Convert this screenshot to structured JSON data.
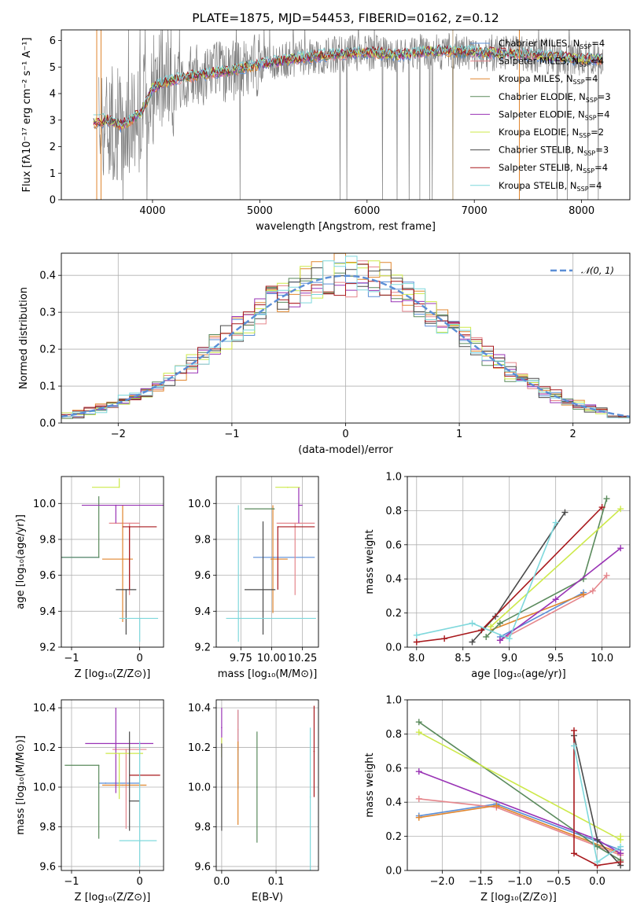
{
  "colors": {
    "chabrier_miles": "#5b8ed6",
    "salpeter_miles": "#e5868c",
    "kroupa_miles": "#e0862e",
    "chabrier_elodie": "#5a8a5c",
    "salpeter_elodie": "#9933b5",
    "kroupa_elodie": "#cde94a",
    "chabrier_stelib": "#4a4a4a",
    "salpeter_stelib": "#a8181c",
    "kroupa_stelib": "#7fd8dc",
    "gaussian": "#5b8ed6"
  },
  "chart_data": [
    {
      "id": "spectrum",
      "type": "line",
      "title": "PLATE=1875, MJD=54453, FIBERID=0162, z=0.12",
      "xlabel": "wavelength [Angstrom, rest frame]",
      "ylabel": "Flux [fλ10⁻¹⁷ erg cm⁻² s⁻¹ A⁻¹]",
      "xlim": [
        3150,
        8450
      ],
      "ylim": [
        0,
        6.4
      ],
      "xticks": [
        4000,
        5000,
        6000,
        7000,
        8000
      ],
      "yticks": [
        0,
        1,
        2,
        3,
        4,
        5,
        6
      ],
      "legend": "right",
      "legend_entries": [
        "Chabrier MILES, N_SSP=4",
        "Salpeter MILES, N_SSP=4",
        "Kroupa MILES, N_SSP=4",
        "Chabrier ELODIE, N_SSP=3",
        "Salpeter ELODIE, N_SSP=4",
        "Kroupa ELODIE, N_SSP=2",
        "Chabrier STELIB, N_SSP=3",
        "Salpeter STELIB, N_SSP=4",
        "Kroupa STELIB, N_SSP=4"
      ],
      "continuum": {
        "x": [
          3500,
          3600,
          3700,
          3800,
          3900,
          4000,
          4100,
          4200,
          4300,
          4500,
          4700,
          5000,
          5300,
          5600,
          6000,
          6300,
          6600,
          7000,
          7400,
          8000,
          8200
        ],
        "y": [
          2.9,
          3.0,
          2.8,
          3.0,
          3.3,
          4.2,
          4.4,
          4.5,
          4.6,
          4.75,
          4.85,
          5.1,
          5.3,
          5.45,
          5.55,
          5.45,
          5.6,
          5.55,
          5.5,
          5.3,
          5.3
        ]
      }
    },
    {
      "id": "residuals",
      "type": "bar",
      "title": "",
      "xlabel": "(data-model)/error",
      "ylabel": "Normed distribution",
      "xlim": [
        -2.5,
        2.5
      ],
      "ylim": [
        0,
        0.46
      ],
      "xticks": [
        -2,
        -1,
        0,
        1,
        2
      ],
      "yticks": [
        0.0,
        0.1,
        0.2,
        0.3,
        0.4
      ],
      "legend": "top-right",
      "legend_label": "𝒩(0, 1)",
      "bin_width": 0.1
    },
    {
      "id": "age_vs_Z",
      "type": "scatter",
      "xlabel": "Z [log₁₀(Z/Z⊙)]",
      "ylabel": "age  [log₁₀(age/yr)]",
      "xlim": [
        -1.15,
        0.35
      ],
      "ylim": [
        9.2,
        10.15
      ],
      "xticks": [
        -1,
        0
      ],
      "yticks": [
        9.2,
        9.4,
        9.6,
        9.8,
        10.0
      ],
      "points": [
        {
          "m": "chabrier_miles",
          "x": -0.6,
          "xe": [
            0.6,
            0.0
          ],
          "y": 9.7,
          "ye": [
            0.0,
            0.0
          ]
        },
        {
          "m": "salpeter_miles",
          "x": -0.15,
          "xe": [
            0.3,
            0.15
          ],
          "y": 9.89,
          "ye": [
            0.4,
            0.0
          ]
        },
        {
          "m": "kroupa_miles",
          "x": -0.25,
          "xe": [
            0.3,
            0.15
          ],
          "y": 9.69,
          "ye": [
            0.35,
            0.3
          ]
        },
        {
          "m": "chabrier_elodie",
          "x": -0.6,
          "xe": [
            0.55,
            0.0
          ],
          "y": 9.7,
          "ye": [
            0.0,
            0.34
          ]
        },
        {
          "m": "salpeter_elodie",
          "x": -0.35,
          "xe": [
            0.5,
            0.7
          ],
          "y": 9.99,
          "ye": [
            0.1,
            0.0
          ]
        },
        {
          "m": "kroupa_elodie",
          "x": -0.3,
          "xe": [
            0.4,
            0.0
          ],
          "y": 10.09,
          "ye": [
            0.0,
            0.05
          ]
        },
        {
          "m": "chabrier_stelib",
          "x": -0.2,
          "xe": [
            0.15,
            0.15
          ],
          "y": 9.52,
          "ye": [
            0.25,
            0.0
          ]
        },
        {
          "m": "salpeter_stelib",
          "x": -0.15,
          "xe": [
            0.1,
            0.4
          ],
          "y": 9.87,
          "ye": [
            0.35,
            0.0
          ]
        },
        {
          "m": "kroupa_stelib",
          "x": 0.0,
          "xe": [
            0.3,
            0.27
          ],
          "y": 9.36,
          "ye": [
            0.13,
            0.0
          ]
        }
      ]
    },
    {
      "id": "age_vs_mass",
      "type": "scatter",
      "xlabel": "mass [log₁₀(M/M⊙)]",
      "ylabel": "",
      "xlim": [
        9.55,
        10.38
      ],
      "ylim": [
        9.2,
        10.15
      ],
      "xticks": [
        9.75,
        10.0,
        10.25
      ],
      "yticks": [
        9.2,
        9.4,
        9.6,
        9.8,
        10.0
      ],
      "points": [
        {
          "m": "chabrier_miles",
          "x": 10.02,
          "xe": [
            0.17,
            0.33
          ],
          "y": 9.7,
          "ye": [
            0.0,
            0.0
          ]
        },
        {
          "m": "salpeter_miles",
          "x": 10.19,
          "xe": [
            0.15,
            0.16
          ],
          "y": 9.89,
          "ye": [
            0.4,
            0.0
          ]
        },
        {
          "m": "kroupa_miles",
          "x": 10.01,
          "xe": [
            0.02,
            0.12
          ],
          "y": 9.69,
          "ye": [
            0.3,
            0.3
          ]
        },
        {
          "m": "chabrier_elodie",
          "x": 10.02,
          "xe": [
            0.24,
            0.0
          ],
          "y": 9.97,
          "ye": [
            0.0,
            0.0
          ]
        },
        {
          "m": "salpeter_elodie",
          "x": 10.22,
          "xe": [
            0.0,
            0.03
          ],
          "y": 9.99,
          "ye": [
            0.1,
            0.1
          ]
        },
        {
          "m": "kroupa_elodie",
          "x": 10.13,
          "xe": [
            0.1,
            0.1
          ],
          "y": 10.09,
          "ye": [
            0.0,
            0.0
          ]
        },
        {
          "m": "chabrier_stelib",
          "x": 9.93,
          "xe": [
            0.15,
            0.1
          ],
          "y": 9.52,
          "ye": [
            0.25,
            0.38
          ]
        },
        {
          "m": "salpeter_stelib",
          "x": 10.05,
          "xe": [
            0.0,
            0.3
          ],
          "y": 9.87,
          "ye": [
            0.35,
            0.0
          ]
        },
        {
          "m": "kroupa_stelib",
          "x": 9.73,
          "xe": [
            0.1,
            0.63
          ],
          "y": 9.36,
          "ye": [
            0.13,
            0.63
          ]
        }
      ]
    },
    {
      "id": "weight_vs_age",
      "type": "line",
      "xlabel": "age  [log₁₀(age/yr)]",
      "ylabel": "mass weight",
      "xlim": [
        7.9,
        10.3
      ],
      "ylim": [
        0,
        1.0
      ],
      "xticks": [
        8.0,
        8.5,
        9.0,
        9.5,
        10.0
      ],
      "yticks": [
        0.0,
        0.2,
        0.4,
        0.6,
        0.8,
        1.0
      ],
      "series": [
        {
          "m": "chabrier_miles",
          "x": [
            8.9,
            9.8
          ],
          "y": [
            0.06,
            0.32
          ]
        },
        {
          "m": "salpeter_miles",
          "x": [
            8.9,
            9.9,
            10.05
          ],
          "y": [
            0.04,
            0.33,
            0.42
          ]
        },
        {
          "m": "kroupa_miles",
          "x": [
            8.8,
            9.8
          ],
          "y": [
            0.1,
            0.31
          ]
        },
        {
          "m": "chabrier_elodie",
          "x": [
            8.75,
            8.9,
            9.8,
            10.05
          ],
          "y": [
            0.06,
            0.14,
            0.4,
            0.87
          ]
        },
        {
          "m": "salpeter_elodie",
          "x": [
            8.9,
            9.5,
            10.2
          ],
          "y": [
            0.04,
            0.28,
            0.58
          ]
        },
        {
          "m": "kroupa_elodie",
          "x": [
            8.8,
            10.2
          ],
          "y": [
            0.12,
            0.81
          ]
        },
        {
          "m": "chabrier_stelib",
          "x": [
            8.6,
            8.85,
            9.6
          ],
          "y": [
            0.03,
            0.18,
            0.79
          ]
        },
        {
          "m": "salpeter_stelib",
          "x": [
            8.0,
            8.3,
            8.7,
            10.0
          ],
          "y": [
            0.03,
            0.05,
            0.1,
            0.82
          ]
        },
        {
          "m": "kroupa_stelib",
          "x": [
            8.0,
            8.6,
            9.0,
            9.5
          ],
          "y": [
            0.07,
            0.14,
            0.05,
            0.73
          ]
        }
      ]
    },
    {
      "id": "mass_vs_Z",
      "type": "scatter",
      "xlabel": "Z [log₁₀(Z/Z⊙)]",
      "ylabel": "mass [log₁₀(M/M⊙)]",
      "xlim": [
        -1.15,
        0.35
      ],
      "ylim": [
        9.58,
        10.44
      ],
      "xticks": [
        -1,
        0
      ],
      "yticks": [
        9.6,
        9.8,
        10.0,
        10.2,
        10.4
      ],
      "points": [
        {
          "m": "chabrier_miles",
          "x": -0.5,
          "xe": [
            0.1,
            0.5
          ],
          "y": 10.02,
          "ye": [
            0.0,
            0.0
          ]
        },
        {
          "m": "salpeter_miles",
          "x": -0.2,
          "xe": [
            0.2,
            0.3
          ],
          "y": 10.19,
          "ye": [
            0.4,
            0.0
          ]
        },
        {
          "m": "kroupa_miles",
          "x": -0.25,
          "xe": [
            0.3,
            0.35
          ],
          "y": 10.01,
          "ye": [
            0.0,
            0.0
          ]
        },
        {
          "m": "chabrier_elodie",
          "x": -0.6,
          "xe": [
            0.5,
            0.0
          ],
          "y": 10.11,
          "ye": [
            0.37,
            0.0
          ]
        },
        {
          "m": "salpeter_elodie",
          "x": -0.35,
          "xe": [
            0.45,
            0.55
          ],
          "y": 10.22,
          "ye": [
            0.25,
            0.18
          ]
        },
        {
          "m": "kroupa_elodie",
          "x": -0.3,
          "xe": [
            0.2,
            0.35
          ],
          "y": 10.17,
          "ye": [
            0.23,
            0.0
          ]
        },
        {
          "m": "chabrier_stelib",
          "x": -0.15,
          "xe": [
            0.0,
            0.15
          ],
          "y": 9.93,
          "ye": [
            0.15,
            0.35
          ]
        },
        {
          "m": "salpeter_stelib",
          "x": 0.0,
          "xe": [
            0.15,
            0.3
          ],
          "y": 10.06,
          "ye": [
            0.0,
            0.0
          ]
        },
        {
          "m": "kroupa_stelib",
          "x": 0.0,
          "xe": [
            0.3,
            0.25
          ],
          "y": 9.73,
          "ye": [
            0.13,
            0.5
          ]
        }
      ]
    },
    {
      "id": "mass_vs_ebv",
      "type": "scatter",
      "xlabel": "E(B-V)",
      "ylabel": "",
      "xlim": [
        -0.01,
        0.178
      ],
      "ylim": [
        9.58,
        10.44
      ],
      "xticks": [
        0.0,
        0.1
      ],
      "yticks": [
        9.6,
        9.8,
        10.0,
        10.2,
        10.4
      ],
      "points": [
        {
          "m": "chabrier_miles",
          "x": 0.03,
          "xe": [
            0,
            0
          ],
          "y": 10.19,
          "ye": [
            0.2,
            0.2
          ]
        },
        {
          "m": "salpeter_miles",
          "x": 0.03,
          "xe": [
            0,
            0
          ],
          "y": 10.29,
          "ye": [
            0.1,
            0.1
          ]
        },
        {
          "m": "kroupa_miles",
          "x": 0.03,
          "xe": [
            0,
            0
          ],
          "y": 10.02,
          "ye": [
            0.21,
            0.21
          ]
        },
        {
          "m": "chabrier_elodie",
          "x": 0.065,
          "xe": [
            0,
            0
          ],
          "y": 10.0,
          "ye": [
            0.28,
            0.28
          ]
        },
        {
          "m": "salpeter_elodie",
          "x": 0.0,
          "xe": [
            0,
            0
          ],
          "y": 10.3,
          "ye": [
            0.1,
            0.1
          ]
        },
        {
          "m": "kroupa_elodie",
          "x": 0.0,
          "xe": [
            0,
            0
          ],
          "y": 10.2,
          "ye": [
            0.05,
            0.05
          ]
        },
        {
          "m": "chabrier_stelib",
          "x": 0.0,
          "xe": [
            0,
            0
          ],
          "y": 10.0,
          "ye": [
            0.22,
            0.22
          ]
        },
        {
          "m": "salpeter_stelib",
          "x": 0.17,
          "xe": [
            0,
            0
          ],
          "y": 10.18,
          "ye": [
            0.23,
            0.23
          ]
        },
        {
          "m": "kroupa_stelib",
          "x": 0.163,
          "xe": [
            0,
            0
          ],
          "y": 9.95,
          "ye": [
            0.37,
            0.35
          ]
        }
      ]
    },
    {
      "id": "weight_vs_Z",
      "type": "line",
      "xlabel": "Z [log₁₀(Z/Z⊙)]",
      "ylabel": "mass weight",
      "xlim": [
        -2.45,
        0.42
      ],
      "ylim": [
        0,
        1.0
      ],
      "xticks": [
        -2.0,
        -1.5,
        -1.0,
        -0.5,
        0.0
      ],
      "yticks": [
        0.0,
        0.2,
        0.4,
        0.6,
        0.8,
        1.0
      ],
      "series": [
        {
          "m": "chabrier_miles",
          "x": [
            -2.3,
            -1.3,
            0.3
          ],
          "y": [
            0.32,
            0.39,
            0.12
          ]
        },
        {
          "m": "salpeter_miles",
          "x": [
            -2.3,
            -1.3,
            0.3
          ],
          "y": [
            0.42,
            0.37,
            0.09
          ]
        },
        {
          "m": "kroupa_miles",
          "x": [
            -2.3,
            -1.3,
            0.3
          ],
          "y": [
            0.31,
            0.38,
            0.1
          ]
        },
        {
          "m": "chabrier_elodie",
          "x": [
            -2.3,
            0.0,
            0.3
          ],
          "y": [
            0.87,
            0.14,
            0.06
          ]
        },
        {
          "m": "salpeter_elodie",
          "x": [
            -2.3,
            0.0,
            0.3
          ],
          "y": [
            0.58,
            0.18,
            0.1
          ]
        },
        {
          "m": "kroupa_elodie",
          "x": [
            -2.3,
            0.3,
            0.3
          ],
          "y": [
            0.81,
            0.18,
            0.2
          ]
        },
        {
          "m": "chabrier_stelib",
          "x": [
            -0.3,
            0.0,
            0.3
          ],
          "y": [
            0.79,
            0.18,
            0.03
          ]
        },
        {
          "m": "salpeter_stelib",
          "x": [
            -0.3,
            -0.3,
            0.0,
            0.3
          ],
          "y": [
            0.82,
            0.1,
            0.03,
            0.05
          ]
        },
        {
          "m": "kroupa_stelib",
          "x": [
            -0.3,
            0.0,
            0.3
          ],
          "y": [
            0.73,
            0.05,
            0.14
          ]
        }
      ]
    }
  ]
}
